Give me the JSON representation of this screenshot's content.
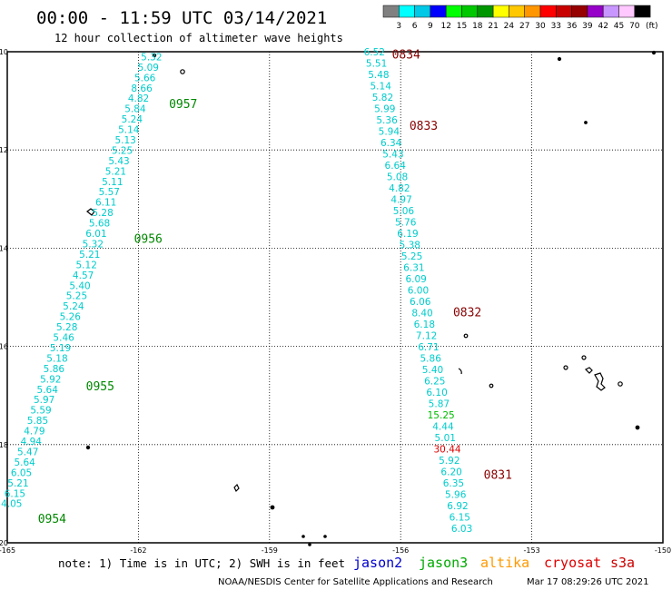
{
  "header": {
    "title": "00:00 - 11:59 UTC 03/14/2021",
    "subtitle": "12 hour collection of altimeter wave heights"
  },
  "color_scale": {
    "labels": [
      "3",
      "6",
      "9",
      "12",
      "15",
      "18",
      "21",
      "24",
      "27",
      "30",
      "33",
      "36",
      "39",
      "42",
      "45",
      "70"
    ],
    "unit": "(ft)",
    "colors": [
      "#808080",
      "#00ffff",
      "#00c8e6",
      "#0000ff",
      "#00ff00",
      "#00c800",
      "#009600",
      "#ffff00",
      "#ffc800",
      "#ff9600",
      "#ff0000",
      "#c80000",
      "#960000",
      "#9600c8",
      "#c896ff",
      "#ffc8ff",
      "#000000"
    ]
  },
  "footer": {
    "note": "note: 1) Time is in UTC; 2) SWH is in feet",
    "credit": "NOAA/NESDIS Center for Satellite Applications and Research",
    "timestamp": "Mar 17 08:29:26 UTC 2021"
  },
  "legend": [
    {
      "name": "jason2",
      "color": "#0000cc"
    },
    {
      "name": "jason3",
      "color": "#00aa00"
    },
    {
      "name": "altika",
      "color": "#ff9900"
    },
    {
      "name": "cryosat",
      "color": "#dd0000"
    },
    {
      "name": "s3a",
      "color": "#cc0000"
    }
  ],
  "chart_data": {
    "type": "scatter",
    "title": "00:00 - 11:59 UTC 03/14/2021",
    "subtitle": "12 hour collection of altimeter wave heights",
    "xlim": [
      -165,
      -150
    ],
    "ylim": [
      -20,
      -10
    ],
    "x_ticks": [
      "-165",
      "-162",
      "-159",
      "-156",
      "-153",
      "-150"
    ],
    "y_ticks": [
      "-10",
      "-12",
      "-14",
      "-16",
      "-18",
      "-20"
    ],
    "grid": true,
    "tracks": [
      {
        "name": "jason3",
        "color": "#00cccc",
        "start": [
          -161.7,
          -10.1
        ],
        "end": [
          -164.9,
          -19.2
        ],
        "values": [
          "5.32",
          "5.09",
          "5.66",
          "8.66",
          "4.82",
          "5.84",
          "5.24",
          "5.14",
          "5.13",
          "5.25",
          "5.43",
          "5.21",
          "5.11",
          "5.57",
          "6.11",
          "5.28",
          "5.68",
          "6.01",
          "5.32",
          "5.21",
          "5.12",
          "4.57",
          "5.40",
          "5.25",
          "5.24",
          "5.26",
          "5.28",
          "5.46",
          "5.19",
          "5.18",
          "5.86",
          "5.92",
          "5.64",
          "5.97",
          "5.59",
          "5.85",
          "4.79",
          "4.94",
          "5.47",
          "5.64",
          "6.05",
          "5.21",
          "6.15",
          "4.05"
        ],
        "times": [
          {
            "label": "0957",
            "lon": -161.3,
            "lat": -11.05
          },
          {
            "label": "0956",
            "lon": -162.1,
            "lat": -13.8
          },
          {
            "label": "0955",
            "lon": -163.2,
            "lat": -16.8
          },
          {
            "label": "0954",
            "lon": -164.3,
            "lat": -19.5
          }
        ],
        "time_color": "#008800"
      },
      {
        "name": "s3a",
        "color": "#00cccc",
        "start": [
          -156.6,
          -10.0
        ],
        "end": [
          -154.6,
          -19.7
        ],
        "values": [
          "6.52",
          "5.51",
          "5.48",
          "5.14",
          "5.82",
          "5.99",
          "5.36",
          "5.94",
          "6.34",
          "5.43",
          "6.64",
          "5.08",
          "4.82",
          "4.97",
          "5.06",
          "5.76",
          "6.19",
          "5.38",
          "5.25",
          "6.31",
          "6.09",
          "6.00",
          "6.06",
          "8.40",
          "6.18",
          "7.12",
          "6.71",
          "5.86",
          "5.40",
          "6.25",
          "6.10",
          "5.87",
          "15.25",
          "4.44",
          "5.01",
          "30.44",
          "5.92",
          "6.20",
          "6.35",
          "5.96",
          "6.92",
          "6.15",
          "6.03"
        ],
        "value_colors": {
          "15.25": "#00bb00",
          "30.44": "#dd0000"
        },
        "times": [
          {
            "label": "0834",
            "lon": -156.2,
            "lat": -10.05
          },
          {
            "label": "0833",
            "lon": -155.8,
            "lat": -11.5
          },
          {
            "label": "0832",
            "lon": -154.8,
            "lat": -15.3
          },
          {
            "label": "0831",
            "lon": -154.1,
            "lat": -18.6
          }
        ],
        "time_color": "#880000"
      }
    ]
  }
}
